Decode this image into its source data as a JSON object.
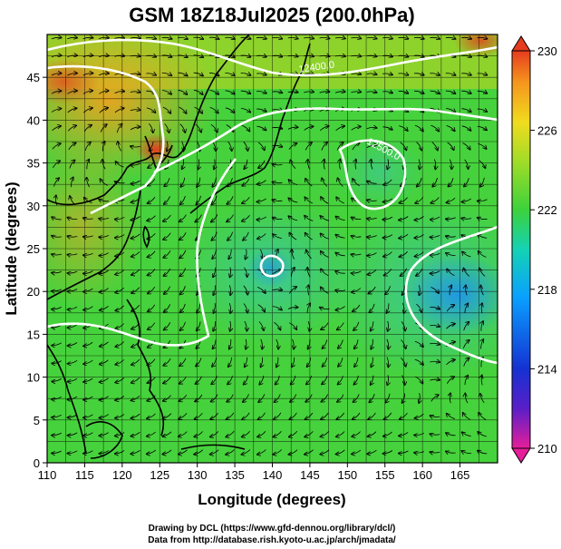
{
  "title": "GSM 18Z18Jul2025 (200.0hPa)",
  "xaxis": {
    "label": "Longitude (degrees)",
    "range": [
      110,
      170
    ],
    "ticks": [
      "110",
      "115",
      "120",
      "125",
      "130",
      "135",
      "140",
      "145",
      "150",
      "155",
      "160",
      "165"
    ]
  },
  "yaxis": {
    "label": "Latitude  (degrees)",
    "range": [
      0,
      50
    ],
    "ticks": [
      "0",
      "5",
      "10",
      "15",
      "20",
      "25",
      "30",
      "35",
      "40",
      "45"
    ]
  },
  "colorbar": {
    "labels": [
      "230",
      "226",
      "222",
      "218",
      "214",
      "210"
    ],
    "range": [
      210,
      230
    ],
    "colors": [
      "#e61e9a",
      "#5a1ec8",
      "#1432d2",
      "#0aa0ff",
      "#14d2b4",
      "#3cd23c",
      "#a0dc28",
      "#f0dc1e",
      "#f5961e",
      "#e63c1e"
    ]
  },
  "contours": {
    "labels": [
      "12400.0",
      "12500.0"
    ]
  },
  "credits": {
    "line1": "Drawing by DCL (https://www.gfd-dennou.org/library/dcl/)",
    "line2": "Data from http://database.rish.kyoto-u.ac.jp/arch/jmadata/"
  }
}
